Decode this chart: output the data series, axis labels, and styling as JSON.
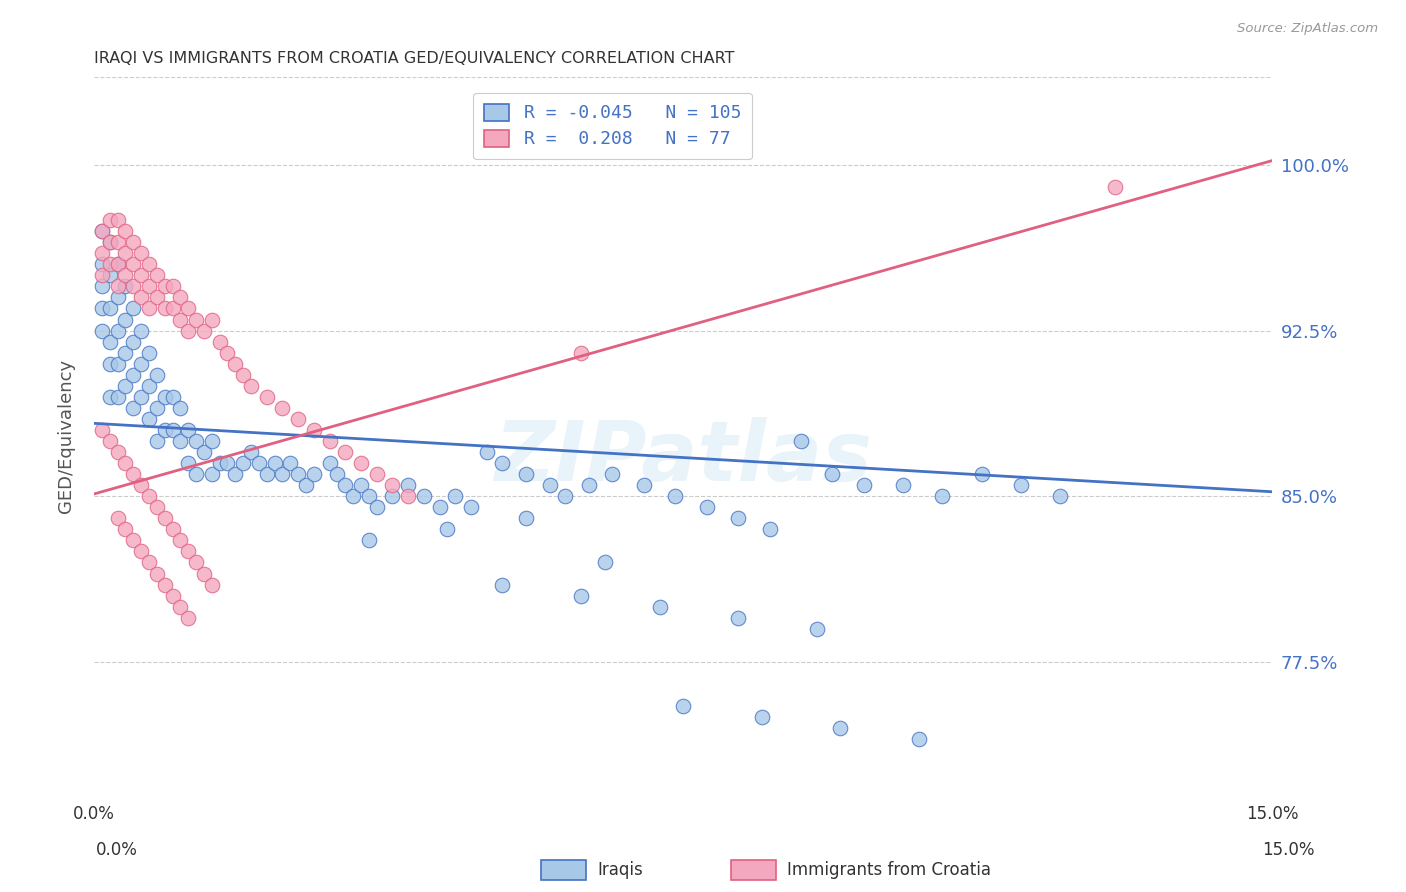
{
  "title": "IRAQI VS IMMIGRANTS FROM CROATIA GED/EQUIVALENCY CORRELATION CHART",
  "source": "Source: ZipAtlas.com",
  "ylabel": "GED/Equivalency",
  "ytick_labels": [
    "100.0%",
    "92.5%",
    "85.0%",
    "77.5%"
  ],
  "ytick_values": [
    1.0,
    0.925,
    0.85,
    0.775
  ],
  "xlim": [
    0.0,
    0.15
  ],
  "ylim": [
    0.715,
    1.04
  ],
  "iraqis_R": -0.045,
  "iraqis_N": 105,
  "croatia_R": 0.208,
  "croatia_N": 77,
  "iraqis_color": "#a8c8e8",
  "croatia_color": "#f4a8c0",
  "iraqis_line_color": "#4472c4",
  "croatia_line_color": "#e06080",
  "legend_iraqis_label": "Iraqis",
  "legend_croatia_label": "Immigrants from Croatia",
  "watermark": "ZIPatlas",
  "iraqis_x": [
    0.001,
    0.001,
    0.001,
    0.001,
    0.001,
    0.002,
    0.002,
    0.002,
    0.002,
    0.002,
    0.002,
    0.003,
    0.003,
    0.003,
    0.003,
    0.003,
    0.004,
    0.004,
    0.004,
    0.004,
    0.005,
    0.005,
    0.005,
    0.005,
    0.006,
    0.006,
    0.006,
    0.007,
    0.007,
    0.007,
    0.008,
    0.008,
    0.008,
    0.009,
    0.009,
    0.01,
    0.01,
    0.011,
    0.011,
    0.012,
    0.012,
    0.013,
    0.013,
    0.014,
    0.015,
    0.015,
    0.016,
    0.017,
    0.018,
    0.019,
    0.02,
    0.021,
    0.022,
    0.023,
    0.024,
    0.025,
    0.026,
    0.027,
    0.028,
    0.03,
    0.031,
    0.032,
    0.033,
    0.034,
    0.035,
    0.036,
    0.038,
    0.04,
    0.042,
    0.044,
    0.046,
    0.048,
    0.05,
    0.052,
    0.055,
    0.058,
    0.06,
    0.063,
    0.066,
    0.07,
    0.074,
    0.078,
    0.082,
    0.086,
    0.09,
    0.094,
    0.098,
    0.103,
    0.108,
    0.113,
    0.118,
    0.123,
    0.052,
    0.062,
    0.072,
    0.082,
    0.092,
    0.075,
    0.085,
    0.095,
    0.105,
    0.065,
    0.055,
    0.045,
    0.035
  ],
  "iraqis_y": [
    0.97,
    0.955,
    0.945,
    0.935,
    0.925,
    0.965,
    0.95,
    0.935,
    0.92,
    0.91,
    0.895,
    0.955,
    0.94,
    0.925,
    0.91,
    0.895,
    0.945,
    0.93,
    0.915,
    0.9,
    0.935,
    0.92,
    0.905,
    0.89,
    0.925,
    0.91,
    0.895,
    0.915,
    0.9,
    0.885,
    0.905,
    0.89,
    0.875,
    0.895,
    0.88,
    0.895,
    0.88,
    0.89,
    0.875,
    0.88,
    0.865,
    0.875,
    0.86,
    0.87,
    0.875,
    0.86,
    0.865,
    0.865,
    0.86,
    0.865,
    0.87,
    0.865,
    0.86,
    0.865,
    0.86,
    0.865,
    0.86,
    0.855,
    0.86,
    0.865,
    0.86,
    0.855,
    0.85,
    0.855,
    0.85,
    0.845,
    0.85,
    0.855,
    0.85,
    0.845,
    0.85,
    0.845,
    0.87,
    0.865,
    0.86,
    0.855,
    0.85,
    0.855,
    0.86,
    0.855,
    0.85,
    0.845,
    0.84,
    0.835,
    0.875,
    0.86,
    0.855,
    0.855,
    0.85,
    0.86,
    0.855,
    0.85,
    0.81,
    0.805,
    0.8,
    0.795,
    0.79,
    0.755,
    0.75,
    0.745,
    0.74,
    0.82,
    0.84,
    0.835,
    0.83
  ],
  "croatia_x": [
    0.001,
    0.001,
    0.001,
    0.002,
    0.002,
    0.002,
    0.003,
    0.003,
    0.003,
    0.003,
    0.004,
    0.004,
    0.004,
    0.005,
    0.005,
    0.005,
    0.006,
    0.006,
    0.006,
    0.007,
    0.007,
    0.007,
    0.008,
    0.008,
    0.009,
    0.009,
    0.01,
    0.01,
    0.011,
    0.011,
    0.012,
    0.012,
    0.013,
    0.014,
    0.015,
    0.016,
    0.017,
    0.018,
    0.019,
    0.02,
    0.022,
    0.024,
    0.026,
    0.028,
    0.03,
    0.032,
    0.034,
    0.036,
    0.038,
    0.04,
    0.001,
    0.002,
    0.003,
    0.004,
    0.005,
    0.006,
    0.007,
    0.008,
    0.009,
    0.01,
    0.011,
    0.012,
    0.013,
    0.014,
    0.015,
    0.003,
    0.004,
    0.005,
    0.006,
    0.007,
    0.008,
    0.009,
    0.01,
    0.011,
    0.012,
    0.062,
    0.13
  ],
  "croatia_y": [
    0.97,
    0.96,
    0.95,
    0.975,
    0.965,
    0.955,
    0.975,
    0.965,
    0.955,
    0.945,
    0.97,
    0.96,
    0.95,
    0.965,
    0.955,
    0.945,
    0.96,
    0.95,
    0.94,
    0.955,
    0.945,
    0.935,
    0.95,
    0.94,
    0.945,
    0.935,
    0.945,
    0.935,
    0.94,
    0.93,
    0.935,
    0.925,
    0.93,
    0.925,
    0.93,
    0.92,
    0.915,
    0.91,
    0.905,
    0.9,
    0.895,
    0.89,
    0.885,
    0.88,
    0.875,
    0.87,
    0.865,
    0.86,
    0.855,
    0.85,
    0.88,
    0.875,
    0.87,
    0.865,
    0.86,
    0.855,
    0.85,
    0.845,
    0.84,
    0.835,
    0.83,
    0.825,
    0.82,
    0.815,
    0.81,
    0.84,
    0.835,
    0.83,
    0.825,
    0.82,
    0.815,
    0.81,
    0.805,
    0.8,
    0.795,
    0.915,
    0.99
  ]
}
